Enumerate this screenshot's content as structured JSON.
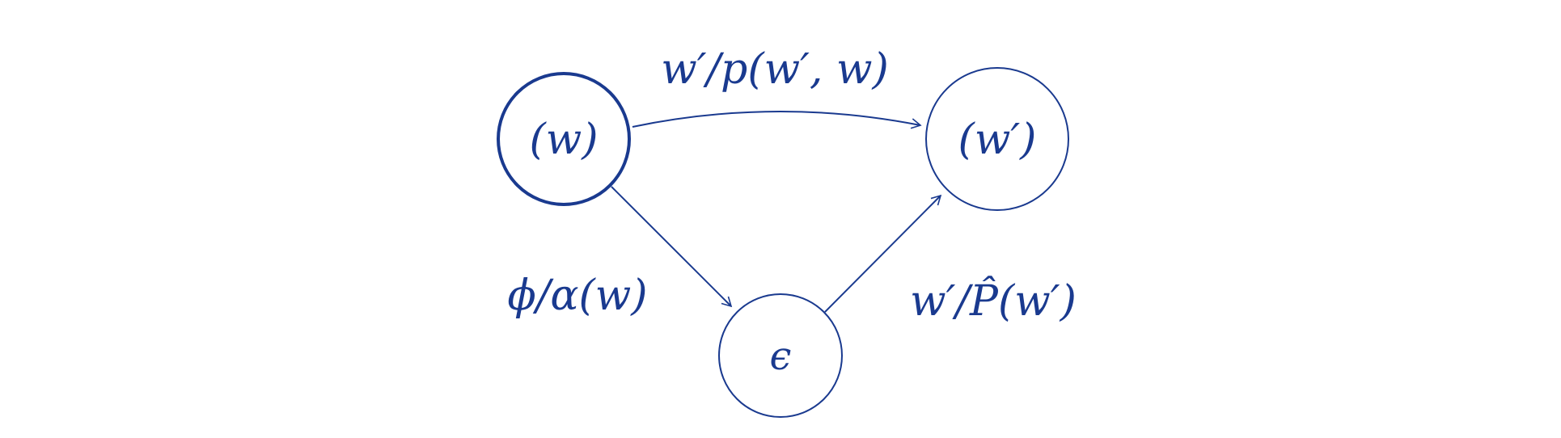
{
  "diagram": {
    "stroke_color": "#1a3a8f",
    "background": "#ffffff",
    "nodes": [
      {
        "id": "w",
        "label": "(w)",
        "initial_bold_border": true
      },
      {
        "id": "w_prime",
        "label": "(w′)",
        "initial_bold_border": false
      },
      {
        "id": "epsilon",
        "label": "ϵ",
        "initial_bold_border": false
      }
    ],
    "edges": [
      {
        "from": "w",
        "to": "w_prime",
        "label": "w′/p(w′, w)"
      },
      {
        "from": "w",
        "to": "epsilon",
        "label": "ϕ/α(w)"
      },
      {
        "from": "epsilon",
        "to": "w_prime",
        "label": "w′/P̂(w′)"
      }
    ]
  }
}
